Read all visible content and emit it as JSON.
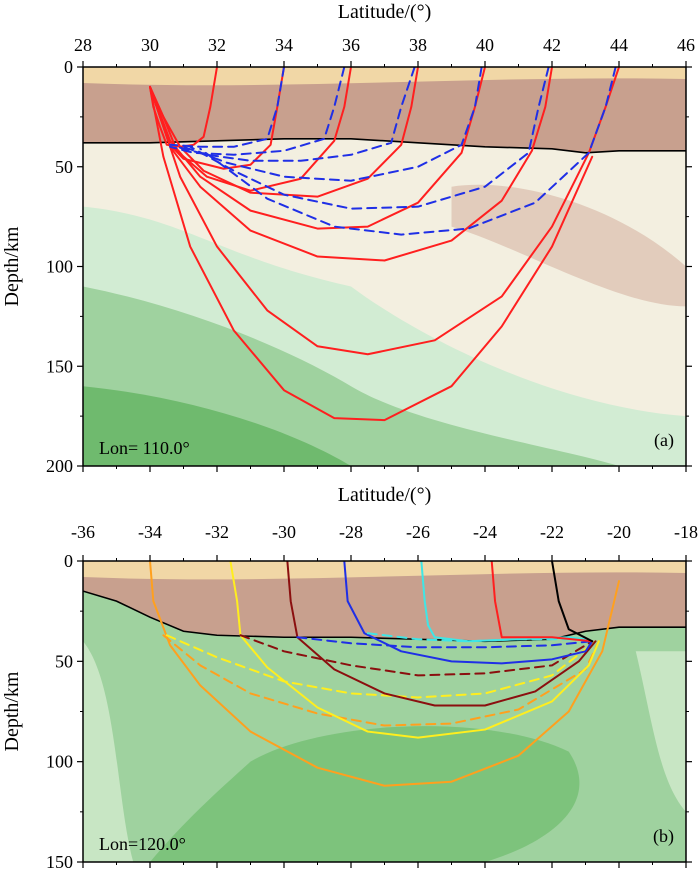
{
  "chart_data": [
    {
      "type": "line",
      "panel_label": "(a)",
      "lon_label": "Lon= 110.0°",
      "xlabel": "Latitude/(°)",
      "ylabel": "Depth/km",
      "xlim": [
        28,
        46
      ],
      "ylim": [
        0,
        200
      ],
      "y_inverted": true,
      "xticks": [
        "28",
        "30",
        "32",
        "34",
        "36",
        "38",
        "40",
        "42",
        "44",
        "46"
      ],
      "yticks": [
        "0",
        "50",
        "100",
        "150",
        "200"
      ],
      "colors": {
        "crust": "#c8a08e",
        "crust_top": "#f1d7a6",
        "mantle_light": "#f3efe0",
        "mantle_tan": "#ddc3b3",
        "green_pale": "#d2ecd3",
        "green_mid": "#9fd29f",
        "green_dark": "#6fba6e",
        "moho_line": "#000000"
      },
      "moho": {
        "x": [
          28,
          30,
          32,
          34,
          36,
          38,
          40,
          42,
          43,
          44,
          46
        ],
        "y": [
          38,
          38,
          37,
          36,
          36,
          38,
          40,
          41,
          43,
          42,
          42
        ]
      },
      "series": [
        {
          "name": "ray 1 solid",
          "color": "#ff1f1f",
          "style": "solid",
          "x": [
            32.0,
            31.8,
            31.6,
            31.3,
            30.9,
            30.5,
            30.3,
            30.1,
            30.0
          ],
          "y": [
            0,
            20,
            35,
            39,
            40,
            39,
            30,
            20,
            10
          ]
        },
        {
          "name": "ray 2 solid",
          "color": "#ff1f1f",
          "style": "solid",
          "x": [
            34.0,
            33.8,
            33.6,
            33.0,
            32.2,
            31.0,
            30.6,
            30.3,
            30.0
          ],
          "y": [
            0,
            20,
            39,
            49,
            51,
            46,
            39,
            25,
            10
          ]
        },
        {
          "name": "ray 3 solid",
          "color": "#ff1f1f",
          "style": "solid",
          "x": [
            36.0,
            35.8,
            35.5,
            34.5,
            33.0,
            31.7,
            30.8,
            30.4,
            30.0
          ],
          "y": [
            0,
            20,
            37,
            56,
            62,
            55,
            42,
            25,
            10
          ]
        },
        {
          "name": "ray 4 solid",
          "color": "#ff1f1f",
          "style": "solid",
          "x": [
            38.0,
            37.8,
            37.5,
            36.5,
            35.0,
            33.0,
            31.6,
            30.9,
            30.4,
            30.0
          ],
          "y": [
            0,
            20,
            39,
            56,
            65,
            63,
            52,
            40,
            25,
            10
          ]
        },
        {
          "name": "ray 5 solid",
          "color": "#ff1f1f",
          "style": "solid",
          "x": [
            40.0,
            39.7,
            39.3,
            38.0,
            36.5,
            35.0,
            33.0,
            31.5,
            30.6,
            30.0
          ],
          "y": [
            0,
            20,
            43,
            68,
            80,
            81,
            72,
            55,
            37,
            10
          ]
        },
        {
          "name": "ray 6 solid",
          "color": "#ff1f1f",
          "style": "solid",
          "x": [
            42.0,
            41.8,
            41.4,
            40.5,
            39.0,
            37.0,
            35.0,
            33.0,
            31.5,
            30.6,
            30.0
          ],
          "y": [
            0,
            20,
            42,
            67,
            87,
            97,
            95,
            82,
            60,
            40,
            10
          ]
        },
        {
          "name": "ray 7 solid",
          "color": "#ff1f1f",
          "style": "solid",
          "x": [
            44.0,
            43.6,
            43.1,
            42.0,
            40.5,
            38.5,
            36.5,
            35.0,
            33.5,
            32.0,
            30.9,
            30.2,
            30.0
          ],
          "y": [
            0,
            20,
            43,
            80,
            115,
            137,
            144,
            140,
            122,
            90,
            55,
            20,
            10
          ]
        },
        {
          "name": "ray 8 solid",
          "color": "#ff1f1f",
          "style": "solid",
          "x": [
            43.2,
            42.0,
            40.5,
            39.0,
            37.0,
            35.5,
            34.0,
            32.5,
            31.2,
            30.4,
            30.0
          ],
          "y": [
            45,
            90,
            130,
            160,
            177,
            176,
            162,
            132,
            90,
            45,
            10
          ]
        },
        {
          "name": "ray 1 dashed",
          "color": "#1f2fe6",
          "style": "dashed",
          "x": [
            34.0,
            33.8,
            33.5,
            32.5,
            31.5,
            30.6
          ],
          "y": [
            0,
            20,
            36,
            40,
            40,
            39
          ]
        },
        {
          "name": "ray 2 dashed",
          "color": "#1f2fe6",
          "style": "dashed",
          "x": [
            35.8,
            35.5,
            35.2,
            34.0,
            32.5,
            31.3,
            30.6
          ],
          "y": [
            0,
            20,
            36,
            42,
            44,
            43,
            40
          ]
        },
        {
          "name": "ray 3 dashed",
          "color": "#1f2fe6",
          "style": "dashed",
          "x": [
            37.9,
            37.5,
            37.2,
            36.0,
            34.5,
            33.0,
            31.7,
            30.8
          ],
          "y": [
            0,
            20,
            38,
            44,
            47,
            47,
            44,
            40
          ]
        },
        {
          "name": "ray 4 dashed",
          "color": "#1f2fe6",
          "style": "dashed",
          "x": [
            39.9,
            39.7,
            39.3,
            38.0,
            36.0,
            34.0,
            32.3,
            31.0
          ],
          "y": [
            0,
            20,
            39,
            50,
            57,
            55,
            48,
            40
          ]
        },
        {
          "name": "ray 5 dashed",
          "color": "#1f2fe6",
          "style": "dashed",
          "x": [
            41.9,
            41.6,
            41.3,
            40.0,
            38.0,
            36.0,
            34.0,
            32.5,
            31.2
          ],
          "y": [
            0,
            20,
            43,
            60,
            70,
            71,
            64,
            52,
            40
          ]
        },
        {
          "name": "ray 6 dashed",
          "color": "#1f2fe6",
          "style": "dashed",
          "x": [
            43.9,
            43.6,
            43.1,
            41.5,
            39.5,
            37.5,
            35.5,
            33.5,
            31.5
          ],
          "y": [
            0,
            20,
            43,
            68,
            81,
            84,
            80,
            66,
            41
          ]
        }
      ]
    },
    {
      "type": "line",
      "panel_label": "(b)",
      "lon_label": "Lon=120.0°",
      "xlabel": "Latitude/(°)",
      "ylabel": "Depth/km",
      "xlim": [
        -36,
        -18
      ],
      "ylim": [
        0,
        150
      ],
      "y_inverted": true,
      "xticks": [
        "-36",
        "-34",
        "-32",
        "-30",
        "-28",
        "-26",
        "-24",
        "-22",
        "-20",
        "-18"
      ],
      "yticks": [
        "0",
        "50",
        "100",
        "150"
      ],
      "colors": {
        "crust": "#c8a08e",
        "crust_top": "#f1d7a6",
        "green_pale": "#c8e6c4",
        "green_mid": "#9fd29f",
        "green_dark": "#72bd70",
        "moho_line": "#000000"
      },
      "moho": {
        "x": [
          -36,
          -35,
          -34,
          -33,
          -32,
          -30,
          -28,
          -26,
          -24,
          -22,
          -21,
          -20,
          -18
        ],
        "y": [
          15,
          20,
          28,
          35,
          37,
          38,
          38,
          39,
          40,
          39,
          35,
          33,
          33
        ]
      },
      "series": [
        {
          "name": "orange solid",
          "color": "#ffa01e",
          "style": "solid",
          "x": [
            -34.0,
            -33.9,
            -33.4,
            -32.5,
            -31.0,
            -29.0,
            -27.0,
            -25.0,
            -23.0,
            -21.5,
            -20.5,
            -20.0
          ],
          "y": [
            0,
            20,
            42,
            62,
            85,
            103,
            112,
            110,
            97,
            75,
            45,
            10
          ]
        },
        {
          "name": "orange dashed",
          "color": "#ffa01e",
          "style": "dashed",
          "x": [
            -33.6,
            -32.5,
            -31.0,
            -29.0,
            -27.0,
            -25.0,
            -23.0,
            -21.0,
            -20.6
          ],
          "y": [
            37,
            52,
            66,
            76,
            82,
            81,
            74,
            54,
            40
          ]
        },
        {
          "name": "yellow solid",
          "color": "#ffee1e",
          "style": "solid",
          "x": [
            -31.6,
            -31.4,
            -31.3,
            -30.5,
            -29.0,
            -27.5,
            -26.0,
            -24.0,
            -22.0,
            -20.9,
            -20.6
          ],
          "y": [
            0,
            20,
            37,
            53,
            73,
            85,
            88,
            84,
            70,
            52,
            40
          ]
        },
        {
          "name": "yellow dashed",
          "color": "#ffee1e",
          "style": "dashed",
          "x": [
            -33.5,
            -32.0,
            -30.0,
            -28.0,
            -26.0,
            -24.0,
            -22.0,
            -20.7
          ],
          "y": [
            37,
            48,
            60,
            66,
            68,
            66,
            57,
            40
          ]
        },
        {
          "name": "darkred solid",
          "color": "#8b0f0f",
          "style": "solid",
          "x": [
            -29.9,
            -29.8,
            -29.6,
            -28.5,
            -27.0,
            -25.5,
            -24.0,
            -22.5,
            -21.2,
            -20.7
          ],
          "y": [
            0,
            20,
            38,
            54,
            66,
            72,
            72,
            65,
            50,
            40
          ]
        },
        {
          "name": "darkred dashed",
          "color": "#8b0f0f",
          "style": "dashed",
          "x": [
            -31.3,
            -30.0,
            -28.0,
            -26.0,
            -24.0,
            -22.0,
            -20.8
          ],
          "y": [
            37,
            45,
            52,
            57,
            56,
            52,
            40
          ]
        },
        {
          "name": "blue solid",
          "color": "#1f2fe6",
          "style": "solid",
          "x": [
            -28.2,
            -28.1,
            -27.6,
            -26.5,
            -25.0,
            -23.5,
            -22.0,
            -21.0,
            -20.8
          ],
          "y": [
            0,
            20,
            36,
            45,
            50,
            51,
            49,
            45,
            40
          ]
        },
        {
          "name": "blue dashed",
          "color": "#1f2fe6",
          "style": "dashed",
          "x": [
            -29.6,
            -28.0,
            -26.0,
            -24.0,
            -22.0,
            -20.8
          ],
          "y": [
            38,
            41,
            43,
            43,
            42,
            40
          ]
        },
        {
          "name": "cyan solid",
          "color": "#3fe6e6",
          "style": "solid",
          "x": [
            -25.9,
            -25.8,
            -25.7,
            -25.5,
            -24.5,
            -23.0,
            -21.5,
            -21.0
          ],
          "y": [
            0,
            20,
            32,
            38,
            40,
            39,
            38,
            39
          ]
        },
        {
          "name": "cyan dashed",
          "color": "#3fe6e6",
          "style": "dashed",
          "x": [
            -27.5,
            -26.0,
            -24.5,
            -23.0,
            -21.0
          ],
          "y": [
            36,
            39,
            40,
            39,
            39
          ]
        },
        {
          "name": "red solid",
          "color": "#ff1f1f",
          "style": "solid",
          "x": [
            -23.8,
            -23.7,
            -23.5,
            -22.0,
            -20.8
          ],
          "y": [
            0,
            20,
            38,
            38,
            40
          ]
        },
        {
          "name": "black solid",
          "color": "#000000",
          "style": "solid",
          "x": [
            -22.0,
            -21.8,
            -21.5,
            -20.8
          ],
          "y": [
            0,
            20,
            34,
            40
          ]
        }
      ]
    }
  ]
}
